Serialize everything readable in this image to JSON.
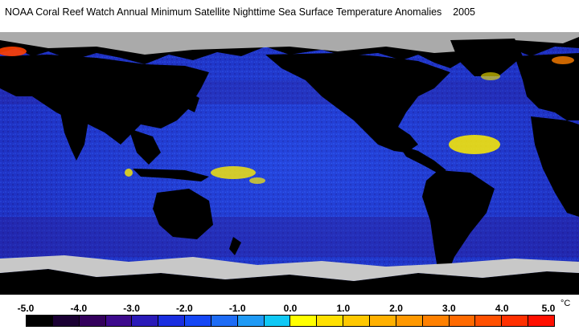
{
  "title": "NOAA Coral Reef Watch Annual Minimum Satellite Nighttime Sea Surface Temperature Anomalies    2005",
  "legend": {
    "ticks": [
      "-5.0",
      "-4.0",
      "-3.0",
      "-2.0",
      "-1.0",
      "0.0",
      "1.0",
      "2.0",
      "3.0",
      "4.0",
      "5.0"
    ],
    "unit": "°C",
    "colors": [
      "#000000",
      "#1a0033",
      "#33005c",
      "#3d0a8c",
      "#2a1ab8",
      "#1a2ee0",
      "#1547f5",
      "#1e6cf5",
      "#1f9af5",
      "#10c8f5",
      "#ffff00",
      "#ffe000",
      "#ffc800",
      "#ffb000",
      "#ff9800",
      "#ff8000",
      "#ff6a00",
      "#ff5000",
      "#ff3000",
      "#ff1000"
    ]
  },
  "map_colors": {
    "land": "#000000",
    "ice": "#c8c8c8",
    "ocean_base": "#1d2ab8",
    "warm_patch": "#ffee00"
  }
}
